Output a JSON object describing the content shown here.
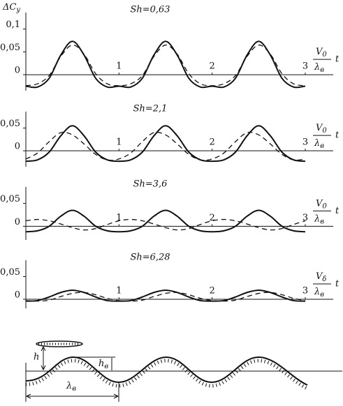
{
  "chart_data": [
    {
      "type": "line",
      "title": "Sh=0,63",
      "ylabel": [
        "ΔC",
        "y"
      ],
      "xlabel": {
        "numerator": [
          "V",
          "0"
        ],
        "denominator": [
          "λ",
          "в"
        ],
        "variable": "t"
      },
      "x": [
        0,
        0.125,
        0.25,
        0.375,
        0.5,
        0.625,
        0.75,
        0.875,
        1,
        1.125,
        1.25,
        1.375,
        1.5,
        1.625,
        1.75,
        1.875,
        2,
        2.125,
        2.25,
        2.375,
        2.5,
        2.625,
        2.75,
        2.875,
        3
      ],
      "series": [
        {
          "color": "#111111",
          "line_style": "solid",
          "values": [
            -0.025,
            -0.027,
            -0.008,
            0.043,
            0.073,
            0.043,
            -0.008,
            -0.027,
            -0.025,
            -0.027,
            -0.008,
            0.043,
            0.073,
            0.043,
            -0.008,
            -0.027,
            -0.025,
            -0.027,
            -0.008,
            0.043,
            0.073,
            0.043,
            -0.008,
            -0.027,
            -0.025
          ]
        },
        {
          "color": "#111111",
          "line_style": "dashed",
          "values": [
            -0.024,
            -0.02,
            -0.002,
            0.04,
            0.065,
            0.045,
            0.002,
            -0.02,
            -0.024,
            -0.02,
            -0.002,
            0.04,
            0.065,
            0.045,
            0.002,
            -0.02,
            -0.024,
            -0.02,
            -0.002,
            0.04,
            0.065,
            0.045,
            0.002,
            -0.02,
            -0.024
          ]
        }
      ],
      "xlim": [
        0,
        3.3
      ],
      "xticks": [
        1,
        2,
        3
      ],
      "ylim": [
        -0.035,
        0.13
      ],
      "yticks": [
        0,
        {
          "value": 0.05,
          "label": "0,05"
        },
        {
          "value": 0.1,
          "label": "0,1"
        }
      ]
    },
    {
      "type": "line",
      "title": "Sh=2,1",
      "xlabel": {
        "numerator": [
          "V",
          "0"
        ],
        "denominator": [
          "λ",
          "в"
        ],
        "variable": "t"
      },
      "x": [
        0,
        0.125,
        0.25,
        0.375,
        0.5,
        0.625,
        0.75,
        0.875,
        1,
        1.125,
        1.25,
        1.375,
        1.5,
        1.625,
        1.75,
        1.875,
        2,
        2.125,
        2.25,
        2.375,
        2.5,
        2.625,
        2.75,
        2.875,
        3
      ],
      "series": [
        {
          "color": "#111111",
          "line_style": "solid",
          "values": [
            -0.023,
            -0.02,
            -0.003,
            0.033,
            0.055,
            0.033,
            -0.003,
            -0.02,
            -0.023,
            -0.02,
            -0.003,
            0.033,
            0.055,
            0.033,
            -0.003,
            -0.02,
            -0.023,
            -0.02,
            -0.003,
            0.033,
            0.055,
            0.033,
            -0.003,
            -0.02,
            -0.023
          ]
        },
        {
          "color": "#111111",
          "line_style": "dashed",
          "values": [
            -0.018,
            -0.005,
            0.02,
            0.04,
            0.035,
            0.015,
            -0.008,
            -0.02,
            -0.018,
            -0.005,
            0.02,
            0.04,
            0.035,
            0.015,
            -0.008,
            -0.02,
            -0.018,
            -0.005,
            0.02,
            0.04,
            0.035,
            0.015,
            -0.008,
            -0.02,
            -0.018
          ]
        }
      ],
      "xlim": [
        0,
        3.3
      ],
      "xticks": [
        1,
        2,
        3
      ],
      "ylim": [
        -0.035,
        0.08
      ],
      "yticks": [
        0,
        {
          "value": 0.05,
          "label": "0,05"
        }
      ]
    },
    {
      "type": "line",
      "title": "Sh=3,6",
      "xlabel": {
        "numerator": [
          "V",
          "0"
        ],
        "denominator": [
          "λ",
          "в"
        ],
        "variable": "t"
      },
      "x": [
        0,
        0.125,
        0.25,
        0.375,
        0.5,
        0.625,
        0.75,
        0.875,
        1,
        1.125,
        1.25,
        1.375,
        1.5,
        1.625,
        1.75,
        1.875,
        2,
        2.125,
        2.25,
        2.375,
        2.5,
        2.625,
        2.75,
        2.875,
        3
      ],
      "series": [
        {
          "color": "#111111",
          "line_style": "solid",
          "values": [
            -0.012,
            -0.01,
            0.0,
            0.022,
            0.035,
            0.022,
            0.0,
            -0.01,
            -0.012,
            -0.01,
            0.0,
            0.022,
            0.035,
            0.022,
            0.0,
            -0.01,
            -0.012,
            -0.01,
            0.0,
            0.022,
            0.035,
            0.022,
            0.0,
            -0.01,
            -0.012
          ]
        },
        {
          "color": "#111111",
          "line_style": "dashed",
          "values": [
            0.012,
            0.015,
            0.012,
            0.005,
            -0.003,
            -0.008,
            -0.005,
            0.004,
            0.012,
            0.015,
            0.012,
            0.005,
            -0.003,
            -0.008,
            -0.005,
            0.004,
            0.012,
            0.015,
            0.012,
            0.005,
            -0.003,
            -0.008,
            -0.005,
            0.004,
            0.012
          ]
        }
      ],
      "xlim": [
        0,
        3.3
      ],
      "xticks": [
        1,
        2,
        3
      ],
      "ylim": [
        -0.03,
        0.08
      ],
      "yticks": [
        0,
        {
          "value": 0.05,
          "label": "0,05"
        }
      ]
    },
    {
      "type": "line",
      "title": "Sh=6,28",
      "xlabel": {
        "numerator": [
          "V",
          "δ"
        ],
        "denominator": [
          "λ",
          "в"
        ],
        "variable": "t"
      },
      "x": [
        0,
        0.125,
        0.25,
        0.375,
        0.5,
        0.625,
        0.75,
        0.875,
        1,
        1.125,
        1.25,
        1.375,
        1.5,
        1.625,
        1.75,
        1.875,
        2,
        2.125,
        2.25,
        2.375,
        2.5,
        2.625,
        2.75,
        2.875,
        3
      ],
      "series": [
        {
          "color": "#111111",
          "line_style": "solid",
          "values": [
            -0.004,
            -0.003,
            0.005,
            0.015,
            0.02,
            0.015,
            0.005,
            -0.003,
            -0.004,
            -0.003,
            0.005,
            0.015,
            0.02,
            0.015,
            0.005,
            -0.003,
            -0.004,
            -0.003,
            0.005,
            0.015,
            0.02,
            0.015,
            0.005,
            -0.003,
            -0.004
          ]
        },
        {
          "color": "#111111",
          "line_style": "dashed",
          "values": [
            -0.003,
            -0.004,
            -0.002,
            0.006,
            0.013,
            0.015,
            0.01,
            0.002,
            -0.003,
            -0.004,
            -0.002,
            0.006,
            0.013,
            0.015,
            0.01,
            0.002,
            -0.003,
            -0.004,
            -0.002,
            0.006,
            0.013,
            0.015,
            0.01,
            0.002,
            -0.003
          ]
        }
      ],
      "xlim": [
        0,
        3.3
      ],
      "xticks": [
        1,
        2,
        3
      ],
      "ylim": [
        -0.02,
        0.08
      ],
      "yticks": [
        0,
        {
          "value": 0.05,
          "label": "0,05"
        }
      ]
    }
  ],
  "diagram": {
    "h": "h",
    "hb": [
      "h",
      "в"
    ],
    "lambda": [
      "λ",
      "в"
    ]
  }
}
